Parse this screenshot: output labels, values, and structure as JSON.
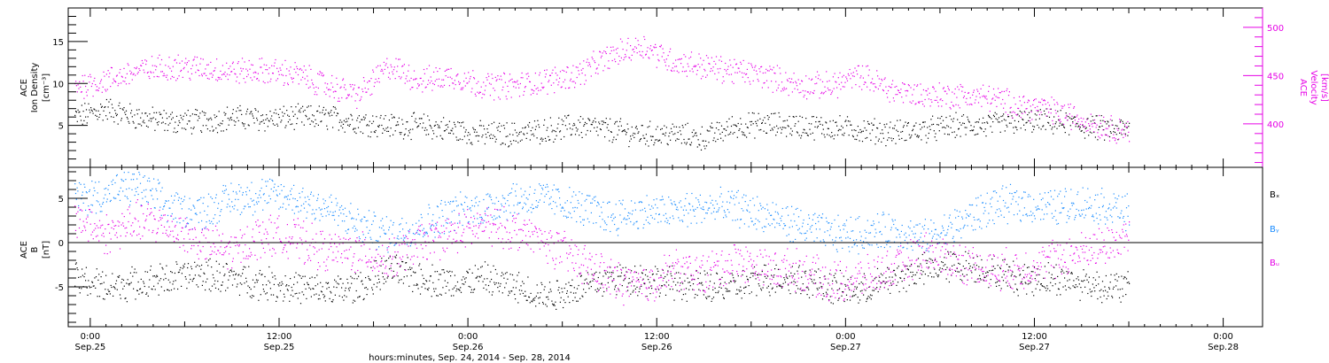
{
  "figure": {
    "xlabel": "hours:minutes, Sep. 24, 2014 - Sep. 28, 2014",
    "x_ticks": [
      {
        "top": "0:00",
        "bottom": "Sep.25"
      },
      {
        "top": "12:00",
        "bottom": "Sep.25"
      },
      {
        "top": "0:00",
        "bottom": "Sep.26"
      },
      {
        "top": "12:00",
        "bottom": "Sep.26"
      },
      {
        "top": "0:00",
        "bottom": "Sep.27"
      },
      {
        "top": "12:00",
        "bottom": "Sep.27"
      },
      {
        "top": "0:00",
        "bottom": "Sep.28"
      }
    ]
  },
  "chart_data": [
    {
      "type": "scatter",
      "ylabel_left": [
        "ACE",
        "Ion Density",
        "[cm⁻³]"
      ],
      "ylabel_right": [
        "ACE",
        "Velocity",
        "[km/s]"
      ],
      "x_unit": "hours since 2014-09-24 00:00",
      "xlim": [
        22.6,
        98.5
      ],
      "ylim_left": [
        0,
        19
      ],
      "ylim_right": [
        355,
        520
      ],
      "left_ticks": [
        5,
        10,
        15
      ],
      "right_ticks": [
        400,
        450,
        500
      ],
      "data_end_hour": 90.2,
      "series": [
        {
          "axis": "left",
          "color": "#000000",
          "x": [
            23,
            25,
            27,
            29,
            31,
            33,
            35,
            37,
            39,
            41,
            43,
            45,
            47,
            49,
            51,
            53,
            55,
            57,
            59,
            61,
            63,
            65,
            67,
            69,
            71,
            73,
            75,
            77,
            79,
            81,
            83,
            85,
            87,
            89,
            90
          ],
          "y": [
            6,
            7,
            6,
            5.5,
            5.5,
            6,
            5.8,
            6,
            6,
            5.5,
            5,
            5,
            4.5,
            4,
            4,
            4.5,
            5,
            4.5,
            4,
            4,
            3.5,
            5,
            5.2,
            5,
            4.8,
            4.5,
            4.2,
            4.5,
            5,
            5,
            5.5,
            5.5,
            5,
            4.5,
            4.5
          ]
        },
        {
          "axis": "right",
          "color": "#e600e6",
          "x": [
            23,
            25,
            27,
            29,
            31,
            33,
            35,
            37,
            39,
            41,
            43,
            45,
            47,
            49,
            51,
            53,
            55,
            57,
            59,
            61,
            63,
            65,
            67,
            69,
            71,
            73,
            75,
            77,
            79,
            81,
            83,
            85,
            87,
            89,
            90
          ],
          "y": [
            440,
            445,
            455,
            460,
            458,
            455,
            455,
            452,
            440,
            430,
            460,
            445,
            450,
            440,
            440,
            445,
            452,
            470,
            482,
            465,
            460,
            455,
            450,
            440,
            440,
            450,
            435,
            430,
            430,
            428,
            420,
            415,
            405,
            395,
            395
          ]
        }
      ]
    },
    {
      "type": "scatter",
      "ylabel_left": [
        "ACE",
        "B",
        "[nT]"
      ],
      "legend": [
        "Bₓ",
        "Bᵧ",
        "Bᵤ"
      ],
      "legend_colors": [
        "#000000",
        "#1a8cff",
        "#e600e6"
      ],
      "x_unit": "hours since 2014-09-24 00:00",
      "xlim": [
        22.6,
        98.5
      ],
      "ylim": [
        -9.5,
        8.5
      ],
      "y_ticks": [
        -5,
        0,
        5
      ],
      "zero_line": true,
      "data_end_hour": 90.2,
      "series": [
        {
          "color": "#000000",
          "x": [
            23,
            25,
            27,
            29,
            31,
            33,
            35,
            37,
            39,
            41,
            43,
            45,
            47,
            49,
            51,
            53,
            55,
            57,
            59,
            61,
            63,
            65,
            67,
            69,
            71,
            73,
            75,
            77,
            79,
            81,
            83,
            85,
            87,
            89,
            90
          ],
          "y": [
            -4,
            -5,
            -4.5,
            -4,
            -3.5,
            -4,
            -4.5,
            -5,
            -5.5,
            -5,
            -3,
            -4,
            -4.5,
            -4,
            -5,
            -6,
            -5,
            -4,
            -4,
            -4.5,
            -5,
            -5,
            -4,
            -4,
            -5,
            -5.5,
            -4,
            -3,
            -2.5,
            -3,
            -4,
            -4,
            -4.5,
            -5,
            -5
          ]
        },
        {
          "color": "#1a8cff",
          "x": [
            23,
            25,
            27,
            29,
            31,
            33,
            35,
            37,
            39,
            41,
            43,
            45,
            47,
            49,
            51,
            53,
            55,
            57,
            59,
            61,
            63,
            65,
            67,
            69,
            71,
            73,
            75,
            77,
            79,
            81,
            83,
            85,
            87,
            89,
            90
          ],
          "y": [
            5,
            5.5,
            6.5,
            4,
            3.5,
            5,
            5.5,
            5,
            4,
            2,
            1,
            2,
            3.5,
            4,
            5,
            5,
            4,
            3,
            3.5,
            3.5,
            4,
            4,
            3,
            2,
            1,
            1,
            1.5,
            0.5,
            2,
            4,
            4.5,
            4,
            4.5,
            4,
            3.5
          ]
        },
        {
          "color": "#e600e6",
          "x": [
            23,
            25,
            27,
            29,
            31,
            33,
            35,
            37,
            39,
            41,
            43,
            45,
            47,
            49,
            51,
            53,
            55,
            57,
            59,
            61,
            63,
            65,
            67,
            69,
            71,
            73,
            75,
            77,
            79,
            81,
            83,
            85,
            87,
            89,
            90
          ],
          "y": [
            3,
            1,
            2.5,
            2,
            0,
            -1,
            1,
            0.5,
            -1,
            -1,
            -2,
            0,
            1,
            2,
            1.5,
            0,
            -2,
            -4,
            -5,
            -3,
            -3.5,
            -2,
            -3,
            -3,
            -4.5,
            -4,
            -3,
            -1,
            -2,
            -3,
            -3,
            -2,
            -1,
            0,
            1
          ]
        }
      ]
    }
  ]
}
